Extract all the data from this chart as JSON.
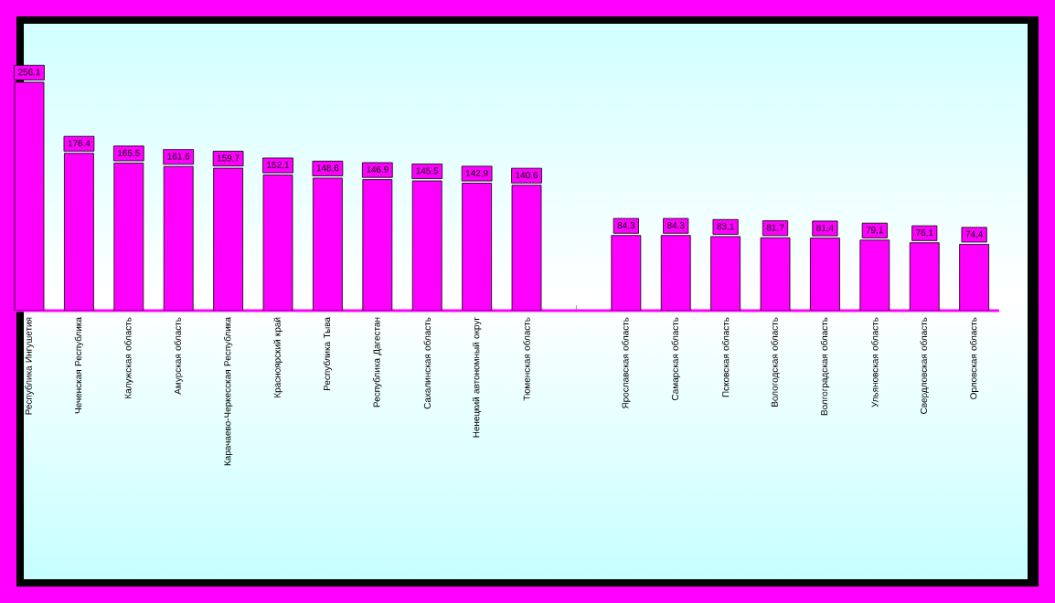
{
  "chart_data": {
    "type": "bar",
    "categories": [
      "Республика Ингушетия",
      "Чеченская Республика",
      "Калужская область",
      "Амурская область",
      "Карачаево-Черкесская Республика",
      "Красноярский край",
      "Республика Тыва",
      "Республика Дагестан",
      "Сахалинская область",
      "Ненецкий автономный округ",
      "Тюменская область",
      null,
      "Ярославская область",
      "Самарская область",
      "Псковская область",
      "Вологодская область",
      "Волгоградская область",
      "Ульяновская область",
      "Свердловская область",
      "Орловская область"
    ],
    "values": [
      256.1,
      176.4,
      165.5,
      161.6,
      159.7,
      152.1,
      148.6,
      146.9,
      145.5,
      142.9,
      140.6,
      null,
      84.3,
      84.3,
      83.1,
      81.7,
      81.4,
      79.1,
      76.1,
      74.4
    ],
    "value_labels": [
      "256,1",
      "176,4",
      "165,5",
      "161,6",
      "159,7",
      "152,1",
      "148,6",
      "146,9",
      "145,5",
      "142,9",
      "140,6",
      null,
      "84,3",
      "84,3",
      "83,1",
      "81,7",
      "81,4",
      "79,1",
      "76,1",
      "74,4"
    ],
    "color": "#ff00ff",
    "tick_labels": "x"
  }
}
